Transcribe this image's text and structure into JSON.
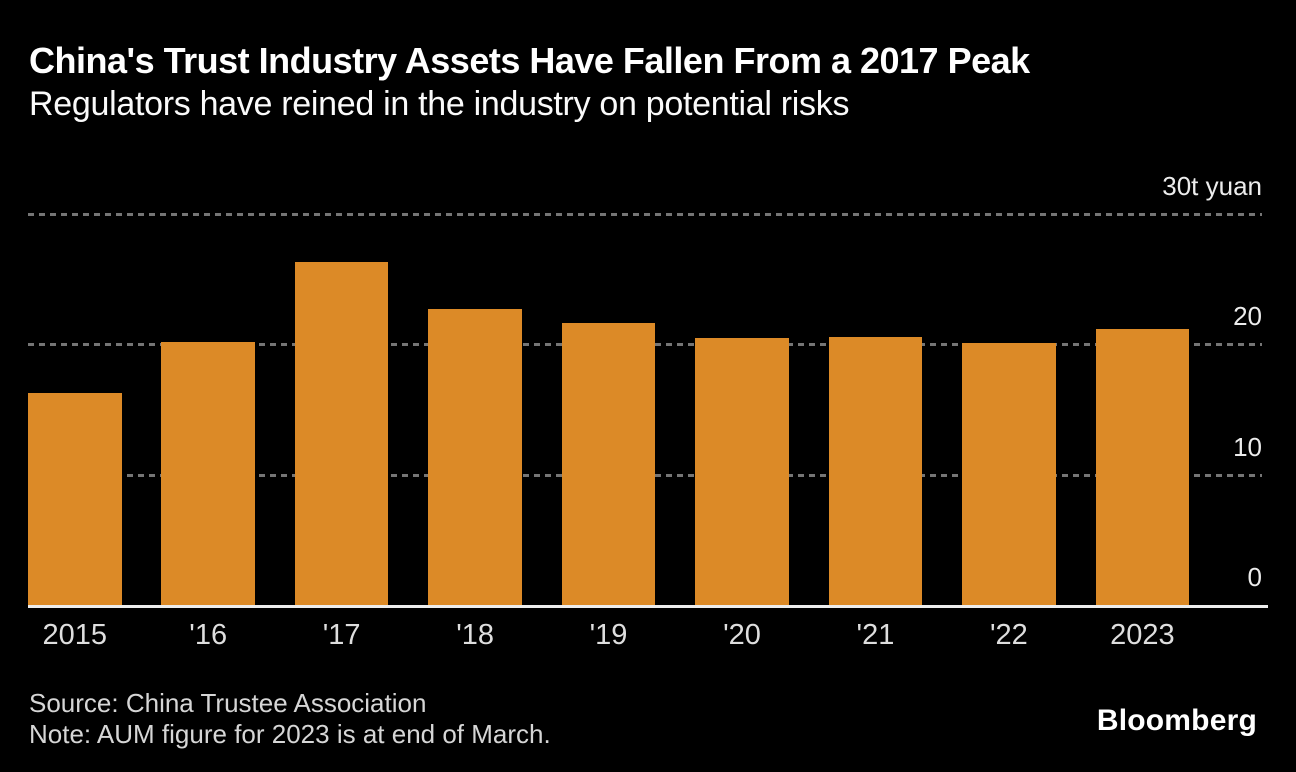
{
  "header": {
    "title": "China's Trust Industry Assets Have Fallen From a 2017 Peak",
    "subtitle": "Regulators have reined in the industry on potential risks"
  },
  "chart_data": {
    "type": "bar",
    "title": "China's Trust Industry Assets Have Fallen From a 2017 Peak",
    "subtitle": "Regulators have reined in the industry on potential risks",
    "categories": [
      "2015",
      "'16",
      "'17",
      "'18",
      "'19",
      "'20",
      "'21",
      "'22",
      "2023"
    ],
    "values": [
      16.3,
      20.2,
      26.3,
      22.7,
      21.6,
      20.5,
      20.6,
      20.1,
      21.2
    ],
    "xlabel": "",
    "ylabel": "t yuan",
    "ylim": [
      0,
      30
    ],
    "y_ticks": [
      {
        "value": 30,
        "label": "30t yuan"
      },
      {
        "value": 20,
        "label": "20"
      },
      {
        "value": 10,
        "label": "10"
      },
      {
        "value": 0,
        "label": "0"
      }
    ],
    "grid": "horizontal-dotted",
    "legend": "none",
    "bar_color": "#dc8a27",
    "background_color": "#000000",
    "unit_suffix": "t yuan"
  },
  "footer": {
    "source": "Source: China Trustee Association",
    "note": "Note: AUM figure for 2023 is at end of March.",
    "brand": "Bloomberg"
  }
}
